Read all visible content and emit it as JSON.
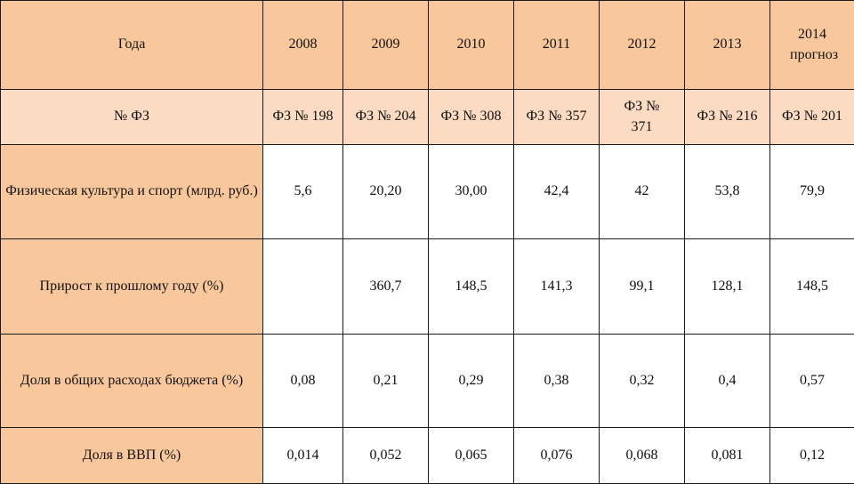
{
  "table": {
    "header": {
      "label": "Года",
      "years": [
        "2008",
        "2009",
        "2010",
        "2011",
        "2012",
        "2013",
        "2014 прогноз"
      ]
    },
    "laws": {
      "label": "№ ФЗ",
      "values": [
        "ФЗ № 198",
        "ФЗ № 204",
        "ФЗ № 308",
        "ФЗ № 357",
        "ФЗ № 371",
        "ФЗ № 216",
        "ФЗ № 201"
      ]
    },
    "rows": [
      {
        "label": "Физическая культура и спорт (млрд. руб.)",
        "values": [
          "5,6",
          "20,20",
          "30,00",
          "42,4",
          "42",
          "53,8",
          "79,9"
        ]
      },
      {
        "label": "Прирост к прошлому году (%)",
        "values": [
          "",
          "360,7",
          "148,5",
          "141,3",
          "99,1",
          "128,1",
          "148,5"
        ]
      },
      {
        "label": "Доля в общих расходах бюджета (%)",
        "values": [
          "0,08",
          "0,21",
          "0,29",
          "0,38",
          "0,32",
          "0,4",
          "0,57"
        ]
      },
      {
        "label": "Доля в ВВП (%)",
        "values": [
          "0,014",
          "0,052",
          "0,065",
          "0,076",
          "0,068",
          "0,081",
          "0,12"
        ]
      }
    ]
  }
}
